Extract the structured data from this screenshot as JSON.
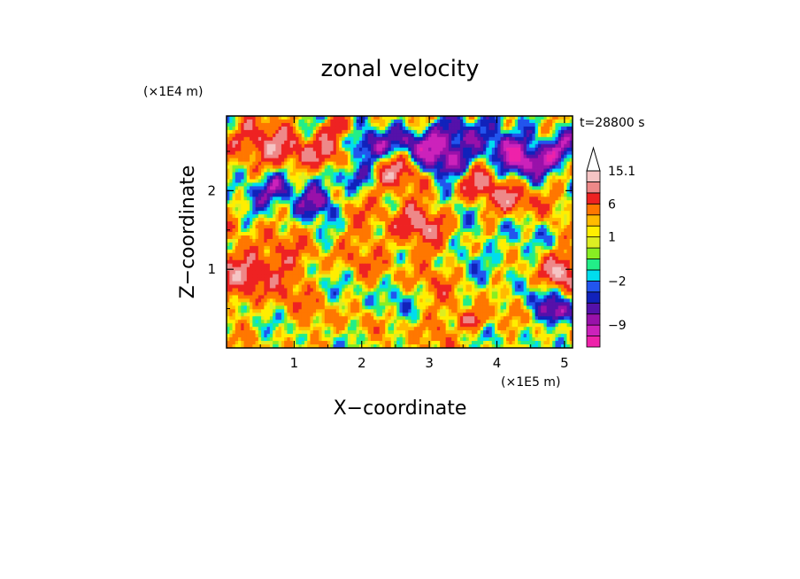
{
  "chart_data": {
    "type": "heatmap",
    "title": "zonal velocity",
    "xlabel": "X−coordinate",
    "ylabel": "Z−coordinate",
    "x_unit": "(×1E5 m)",
    "y_unit": "(×1E4 m)",
    "time_label": "t=28800 s",
    "xlim": [
      0,
      5.12
    ],
    "ylim": [
      0,
      2.95
    ],
    "x_ticks": [
      {
        "value": 1,
        "label": "1"
      },
      {
        "value": 2,
        "label": "2"
      },
      {
        "value": 3,
        "label": "3"
      },
      {
        "value": 4,
        "label": "4"
      },
      {
        "value": 5,
        "label": "5"
      }
    ],
    "y_ticks": [
      {
        "value": 1,
        "label": "1"
      },
      {
        "value": 2,
        "label": "2"
      }
    ],
    "colorbar": {
      "levels": [
        -12.5,
        -11,
        -9,
        -7,
        -5,
        -3.5,
        -2,
        -1,
        0,
        0.5,
        1,
        2,
        3,
        6,
        9,
        12,
        15.1
      ],
      "colors": [
        "#ee22aa",
        "#cc22bb",
        "#9911aa",
        "#5511aa",
        "#1122bb",
        "#2255ee",
        "#00ddee",
        "#22ee88",
        "#88ee22",
        "#ddee22",
        "#ffee00",
        "#ffbb00",
        "#ff7700",
        "#ee2222",
        "#ee8888",
        "#f5c4c4"
      ],
      "extend_max_color": "#ffffff",
      "labels": [
        {
          "value": 15.1,
          "label": "15.1"
        },
        {
          "value": 6,
          "label": "6"
        },
        {
          "value": 1,
          "label": "1"
        },
        {
          "value": -2,
          "label": "−2"
        },
        {
          "value": -9,
          "label": "−9"
        }
      ]
    },
    "field_features": [
      {
        "x": 0.45,
        "z": 1.0,
        "r": 0.35,
        "value": 9
      },
      {
        "x": 0.4,
        "z": 2.6,
        "r": 0.25,
        "value": 9
      },
      {
        "x": 0.75,
        "z": 2.05,
        "r": 0.2,
        "value": -10
      },
      {
        "x": 1.0,
        "z": 2.5,
        "r": 0.2,
        "value": 8
      },
      {
        "x": 1.35,
        "z": 1.85,
        "r": 0.18,
        "value": -9
      },
      {
        "x": 1.5,
        "z": 2.4,
        "r": 0.22,
        "value": 8
      },
      {
        "x": 1.75,
        "z": 2.8,
        "r": 0.18,
        "value": 5
      },
      {
        "x": 1.85,
        "z": 2.2,
        "r": 0.2,
        "value": -8
      },
      {
        "x": 2.05,
        "z": 2.55,
        "r": 0.2,
        "value": -10
      },
      {
        "x": 2.3,
        "z": 1.3,
        "r": 0.5,
        "value": 3
      },
      {
        "x": 2.45,
        "z": 2.2,
        "r": 0.25,
        "value": 9
      },
      {
        "x": 2.3,
        "z": 0.6,
        "r": 0.35,
        "value": -2
      },
      {
        "x": 2.75,
        "z": 2.6,
        "r": 0.2,
        "value": -9
      },
      {
        "x": 2.9,
        "z": 1.6,
        "r": 0.25,
        "value": 6
      },
      {
        "x": 3.15,
        "z": 2.35,
        "r": 0.22,
        "value": -10
      },
      {
        "x": 3.5,
        "z": 2.75,
        "r": 0.22,
        "value": -10
      },
      {
        "x": 3.3,
        "z": 0.9,
        "r": 0.3,
        "value": 2
      },
      {
        "x": 3.65,
        "z": 0.35,
        "r": 0.12,
        "value": 10
      },
      {
        "x": 3.75,
        "z": 2.1,
        "r": 0.2,
        "value": 7
      },
      {
        "x": 3.9,
        "z": 1.2,
        "r": 0.3,
        "value": -3
      },
      {
        "x": 4.1,
        "z": 2.55,
        "r": 0.2,
        "value": -10
      },
      {
        "x": 4.3,
        "z": 1.9,
        "r": 0.2,
        "value": 8
      },
      {
        "x": 4.5,
        "z": 2.35,
        "r": 0.18,
        "value": -10
      },
      {
        "x": 4.6,
        "z": 0.6,
        "r": 0.2,
        "value": -3
      },
      {
        "x": 4.9,
        "z": 0.95,
        "r": 0.22,
        "value": 9
      },
      {
        "x": 4.95,
        "z": 0.45,
        "r": 0.15,
        "value": -10
      },
      {
        "x": 4.85,
        "z": 2.5,
        "r": 0.2,
        "value": -10
      },
      {
        "x": 1.6,
        "z": 0.35,
        "r": 0.3,
        "value": 2
      },
      {
        "x": 0.9,
        "z": 0.5,
        "r": 0.25,
        "value": 1
      },
      {
        "x": 3.0,
        "z": 0.3,
        "r": 0.25,
        "value": 3
      }
    ]
  }
}
